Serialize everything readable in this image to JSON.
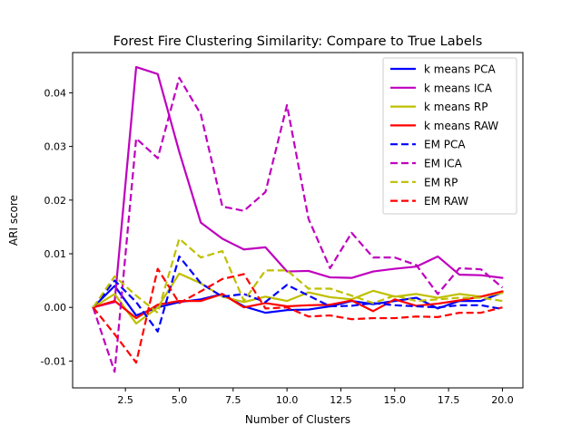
{
  "chart_data": {
    "type": "line",
    "title": "Forest Fire Clustering Similarity: Compare to True Labels",
    "xlabel": "Number of Clusters",
    "ylabel": "ARI score",
    "xlim": [
      0.05,
      20.95
    ],
    "ylim": [
      -0.015,
      0.0475
    ],
    "xticks": [
      {
        "value": 2.5,
        "label": "2.5"
      },
      {
        "value": 5.0,
        "label": "5.0"
      },
      {
        "value": 7.5,
        "label": "7.5"
      },
      {
        "value": 10.0,
        "label": "10.0"
      },
      {
        "value": 12.5,
        "label": "12.5"
      },
      {
        "value": 15.0,
        "label": "15.0"
      },
      {
        "value": 17.5,
        "label": "17.5"
      },
      {
        "value": 20.0,
        "label": "20.0"
      }
    ],
    "yticks": [
      {
        "value": -0.01,
        "label": "-0.01"
      },
      {
        "value": 0.0,
        "label": "0.00"
      },
      {
        "value": 0.01,
        "label": "0.01"
      },
      {
        "value": 0.02,
        "label": "0.02"
      },
      {
        "value": 0.03,
        "label": "0.03"
      },
      {
        "value": 0.04,
        "label": "0.04"
      }
    ],
    "grid": false,
    "legend_position": "top-right",
    "x": [
      1,
      2,
      3,
      4,
      5,
      6,
      7,
      8,
      9,
      10,
      11,
      12,
      13,
      14,
      15,
      16,
      17,
      18,
      19,
      20
    ],
    "series": [
      {
        "name": "k means PCA",
        "color": "#0000ff",
        "dashed": false,
        "values": [
          0.0,
          0.004,
          -0.0015,
          0.0,
          0.001,
          0.0015,
          0.0025,
          0.0002,
          -0.001,
          -0.0005,
          -0.0004,
          0.0002,
          0.0012,
          0.0006,
          0.0012,
          0.0018,
          -0.0002,
          0.0012,
          0.0012,
          0.0028
        ]
      },
      {
        "name": "k means ICA",
        "color": "#bf00bf",
        "dashed": false,
        "values": [
          0.0,
          0.001,
          0.0448,
          0.0435,
          0.029,
          0.0158,
          0.0128,
          0.0108,
          0.0112,
          0.0067,
          0.0068,
          0.0056,
          0.0055,
          0.0067,
          0.0072,
          0.0076,
          0.0095,
          0.0061,
          0.006,
          0.0055
        ]
      },
      {
        "name": "k means RP",
        "color": "#bfbf00",
        "dashed": false,
        "values": [
          0.0,
          0.0025,
          -0.003,
          0.0,
          0.0063,
          0.0045,
          0.002,
          0.001,
          0.002,
          0.0012,
          0.0028,
          0.0019,
          0.0015,
          0.0031,
          0.002,
          0.0025,
          0.0018,
          0.0025,
          0.002,
          0.0027
        ]
      },
      {
        "name": "k means RAW",
        "color": "#ff0000",
        "dashed": false,
        "values": [
          0.0,
          0.0012,
          -0.002,
          0.0005,
          0.0012,
          0.0012,
          0.0025,
          0.0,
          0.0008,
          0.0002,
          0.0004,
          0.0005,
          0.0013,
          -0.0007,
          0.0015,
          0.0003,
          0.0007,
          0.0013,
          0.002,
          0.003
        ]
      },
      {
        "name": "EM PCA",
        "color": "#0000ff",
        "dashed": true,
        "values": [
          0.0,
          0.005,
          0.001,
          -0.0045,
          0.0095,
          0.0045,
          0.002,
          0.0025,
          0.001,
          0.0042,
          0.0022,
          0.0002,
          0.0003,
          0.0008,
          0.0004,
          0.0002,
          0.0,
          0.0004,
          0.0004,
          -0.0003
        ]
      },
      {
        "name": "EM ICA",
        "color": "#bf00bf",
        "dashed": true,
        "values": [
          0.0,
          -0.012,
          0.0315,
          0.0278,
          0.0428,
          0.036,
          0.0188,
          0.018,
          0.0215,
          0.0377,
          0.0165,
          0.0073,
          0.0139,
          0.0093,
          0.0093,
          0.0079,
          0.0025,
          0.0073,
          0.0071,
          0.0037
        ]
      },
      {
        "name": "EM RP",
        "color": "#bfbf00",
        "dashed": true,
        "values": [
          0.0,
          0.0058,
          0.0022,
          -0.001,
          0.0128,
          0.0093,
          0.0105,
          0.0012,
          0.0069,
          0.0069,
          0.0035,
          0.0035,
          0.0022,
          0.0008,
          0.0022,
          0.0012,
          0.0015,
          0.0018,
          0.0018,
          0.0012
        ]
      },
      {
        "name": "EM RAW",
        "color": "#ff0000",
        "dashed": true,
        "values": [
          0.0,
          -0.005,
          -0.0103,
          0.0072,
          0.0008,
          0.003,
          0.0053,
          0.0062,
          -0.0002,
          0.0,
          -0.0017,
          -0.0015,
          -0.0022,
          -0.002,
          -0.002,
          -0.0017,
          -0.0018,
          -0.001,
          -0.001,
          0.0
        ]
      }
    ]
  }
}
